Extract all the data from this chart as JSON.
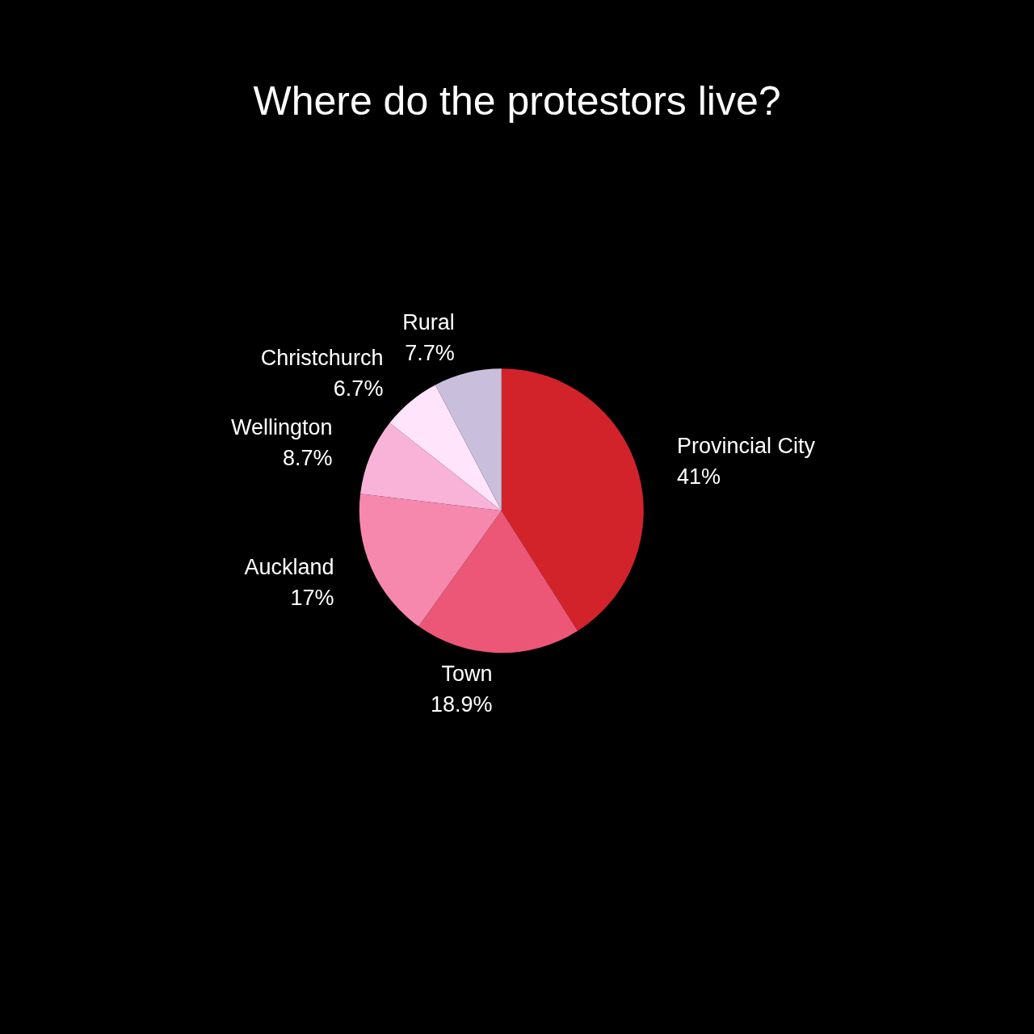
{
  "chart_data": {
    "type": "pie",
    "title": "Where do the protestors live?",
    "categories": [
      "Provincial City",
      "Town",
      "Auckland",
      "Wellington",
      "Christchurch",
      "Rural"
    ],
    "values": [
      41,
      18.9,
      17,
      8.7,
      6.7,
      7.7
    ],
    "value_labels": [
      "41%",
      "18.9%",
      "17%",
      "8.7%",
      "6.7%",
      "7.7%"
    ],
    "colors": [
      "#d2232b",
      "#ec5777",
      "#f788ad",
      "#f9b3d9",
      "#ffe4fb",
      "#c9bfdd"
    ],
    "legend": false
  }
}
